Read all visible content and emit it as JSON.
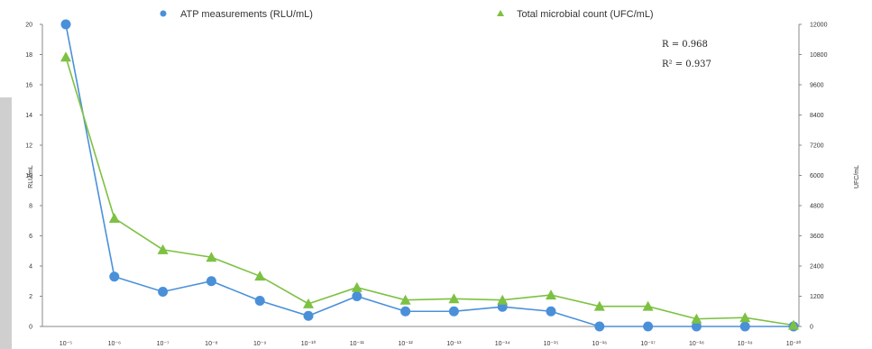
{
  "chart_data": {
    "type": "line",
    "categories": [
      "10⁻⁵",
      "10⁻⁶",
      "10⁻⁷",
      "10⁻⁸",
      "10⁻⁹",
      "10⁻¹⁰",
      "10⁻¹¹",
      "10⁻¹²",
      "10⁻¹³",
      "10⁻¹⁴",
      "10⁻¹⁵",
      "10⁻¹⁶",
      "10⁻¹⁷",
      "10⁻¹⁸",
      "10⁻¹⁹",
      "10⁻²⁰"
    ],
    "series": [
      {
        "name": "ATP measurements (RLU/mL)",
        "axis": "left",
        "marker": "circle",
        "color": "#4a90d9",
        "values": [
          20,
          3.3,
          2.3,
          3.0,
          1.7,
          0.7,
          2.0,
          1.0,
          1.0,
          1.3,
          1.0,
          0.0,
          0.0,
          0.0,
          0.0,
          0.0
        ]
      },
      {
        "name": "Total microbial count (UFC/mL)",
        "axis": "right",
        "marker": "triangle",
        "color": "#7dc142",
        "values": [
          10700,
          4300,
          3050,
          2750,
          2000,
          900,
          1550,
          1050,
          1100,
          1050,
          1250,
          800,
          800,
          300,
          350,
          50
        ]
      }
    ],
    "ylabel": "RLU/mL",
    "y2label": "UFC/mL",
    "ylim": [
      0,
      20
    ],
    "y2lim": [
      0,
      12000
    ],
    "yticks": [
      "0",
      "2",
      "4",
      "6",
      "8",
      "10",
      "12",
      "14",
      "16",
      "18",
      "20"
    ],
    "y2ticks": [
      "0",
      "1200",
      "2400",
      "3600",
      "4800",
      "6000",
      "7200",
      "8400",
      "9600",
      "10800",
      "12000"
    ],
    "annotations": {
      "r": "R = 0.968",
      "r2": "R² = 0.937"
    },
    "legend": "top",
    "grid": false
  }
}
